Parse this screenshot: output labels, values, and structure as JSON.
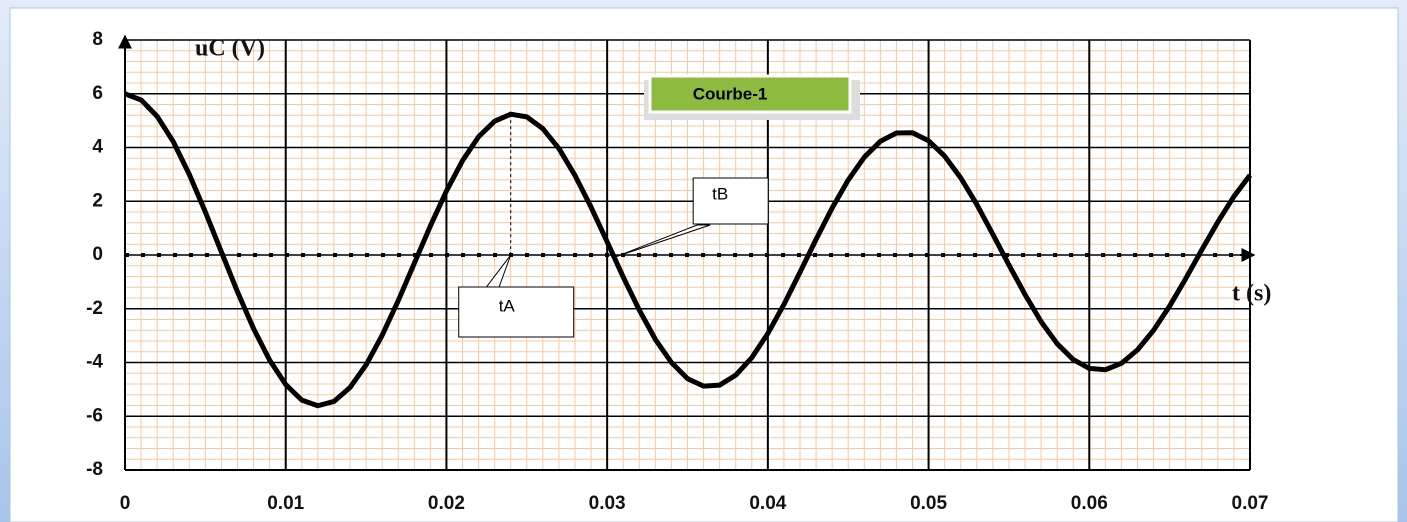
{
  "chart_data": {
    "type": "line",
    "x_label": "t (s)",
    "y_label": "uC (V)",
    "x": [
      0,
      0.001,
      0.002,
      0.003,
      0.004,
      0.005,
      0.006,
      0.007,
      0.008,
      0.009,
      0.01,
      0.011,
      0.012,
      0.013,
      0.014,
      0.015,
      0.016,
      0.017,
      0.018,
      0.019,
      0.02,
      0.021,
      0.022,
      0.023,
      0.024,
      0.025,
      0.026,
      0.027,
      0.028,
      0.029,
      0.03,
      0.031,
      0.032,
      0.033,
      0.034,
      0.035,
      0.036,
      0.037,
      0.038,
      0.039,
      0.04,
      0.041,
      0.042,
      0.043,
      0.044,
      0.045,
      0.046,
      0.047,
      0.048,
      0.049,
      0.05,
      0.051,
      0.052,
      0.053,
      0.054,
      0.055,
      0.056,
      0.057,
      0.058,
      0.059,
      0.06,
      0.061,
      0.062,
      0.063,
      0.064,
      0.065,
      0.066,
      0.067,
      0.068,
      0.069,
      0.07
    ],
    "series": [
      {
        "name": "Courbe-1",
        "color": "#000000",
        "values": [
          6.0,
          5.77,
          5.16,
          4.22,
          3.0,
          1.6,
          0.11,
          -1.37,
          -2.74,
          -3.91,
          -4.82,
          -5.4,
          -5.61,
          -5.45,
          -4.93,
          -4.09,
          -2.99,
          -1.7,
          -0.31,
          1.08,
          2.38,
          3.51,
          4.4,
          4.98,
          5.24,
          5.14,
          4.7,
          3.96,
          2.96,
          1.78,
          0.49,
          -0.82,
          -2.05,
          -3.14,
          -4.0,
          -4.6,
          -4.88,
          -4.84,
          -4.47,
          -3.82,
          -2.92,
          -1.84,
          -0.64,
          0.58,
          1.75,
          2.79,
          3.64,
          4.23,
          4.54,
          4.55,
          4.25,
          3.68,
          2.87,
          1.88,
          0.77,
          -0.37,
          -1.47,
          -2.48,
          -3.3,
          -3.89,
          -4.22,
          -4.27,
          -4.03,
          -3.53,
          -2.8,
          -1.9,
          -0.88,
          0.19,
          1.23,
          2.18,
          2.97
        ]
      }
    ],
    "annotations": [
      {
        "text": "tA",
        "x": 0.024
      },
      {
        "text": "tB",
        "x": 0.0305
      }
    ],
    "xlim": [
      0,
      0.07
    ],
    "xticks": [
      0,
      0.01,
      0.02,
      0.03,
      0.04,
      0.05,
      0.06,
      0.07
    ],
    "ylim": [
      -8,
      8
    ],
    "yticks": [
      -8,
      -6,
      -4,
      -2,
      0,
      2,
      4,
      6,
      8
    ],
    "grid": true
  }
}
